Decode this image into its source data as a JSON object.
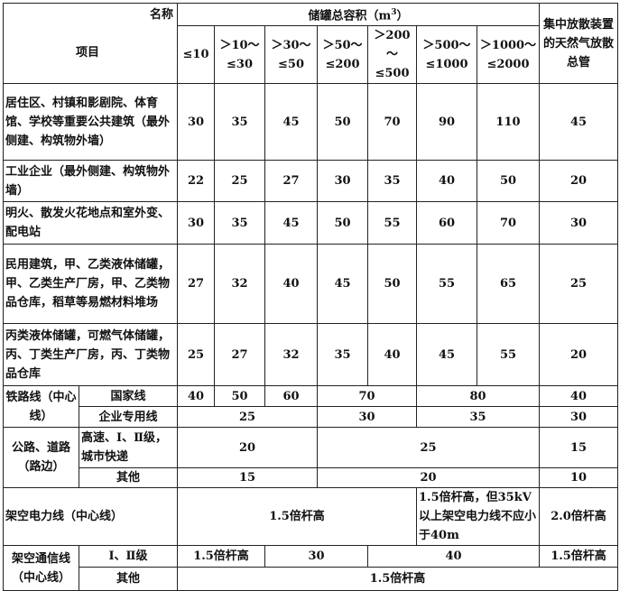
{
  "header": {
    "name_label": "名称",
    "item_label": "项目",
    "volume_label": "储罐总容积（m",
    "volume_unit_sup": "3",
    "volume_close": "）",
    "ranges": [
      "≤10",
      "＞10～≤30",
      "＞30～≤50",
      "＞50～≤200",
      "＞200～≤500",
      "＞500～≤1000",
      "＞1000～≤2000"
    ],
    "vent_label": "集中放散装置的天然气放散总管"
  },
  "rows": [
    {
      "label": "居住区、村镇和影剧院、体育馆、学校等重要公共建筑（最外侧建、构筑物外墙）",
      "values": [
        "30",
        "35",
        "45",
        "50",
        "70",
        "90",
        "110",
        "45"
      ]
    },
    {
      "label": "工业企业（最外侧建、构筑物外墙）",
      "values": [
        "22",
        "25",
        "27",
        "30",
        "35",
        "40",
        "50",
        "20"
      ]
    },
    {
      "label": "明火、散发火花地点和室外变、配电站",
      "values": [
        "30",
        "35",
        "45",
        "50",
        "55",
        "60",
        "70",
        "30"
      ]
    },
    {
      "label": "民用建筑，甲、乙类液体储罐，甲、乙类生产厂房，甲、乙类物品仓库，稻草等易燃材料堆场",
      "values": [
        "27",
        "32",
        "40",
        "45",
        "50",
        "55",
        "65",
        "25"
      ]
    },
    {
      "label": "丙类液体储罐，可燃气体储罐，丙、丁类生产厂房，丙、丁类物品仓库",
      "values": [
        "25",
        "27",
        "32",
        "35",
        "40",
        "45",
        "55",
        "20"
      ]
    }
  ],
  "railway": {
    "label": "铁路线（中心线）",
    "national": {
      "label": "国家线",
      "values": [
        "40",
        "50",
        "60",
        "70",
        "80",
        "40"
      ]
    },
    "enterprise": {
      "label": "企业专用线",
      "values": [
        "25",
        "30",
        "35",
        "30"
      ]
    }
  },
  "road": {
    "label": "公路、道路（路边）",
    "highway": {
      "label": "高速、Ⅰ、Ⅱ级，城市快递",
      "values": [
        "20",
        "25",
        "15"
      ]
    },
    "other": {
      "label": "其他",
      "values": [
        "15",
        "20",
        "10"
      ]
    }
  },
  "power": {
    "label": "架空电力线（中心线）",
    "values": [
      "1.5倍杆高",
      "1.5倍杆高，但35kV以上架空电力线不应小于40m",
      "2.0倍杆高"
    ]
  },
  "telecom": {
    "label": "架空通信线（中心线）",
    "class12": {
      "label": "Ⅰ、Ⅱ级",
      "values": [
        "1.5倍杆高",
        "30",
        "40",
        "1.5倍杆高"
      ]
    },
    "other": {
      "label": "其他",
      "values": [
        "1.5倍杆高"
      ]
    }
  }
}
